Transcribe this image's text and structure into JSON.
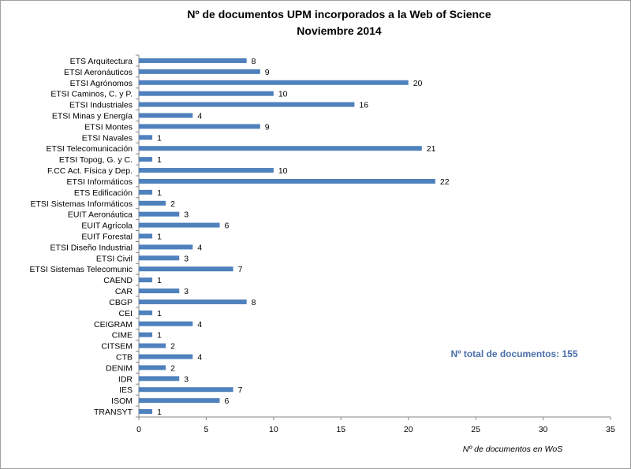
{
  "chart_data": {
    "type": "bar",
    "orientation": "horizontal",
    "title": [
      "Nº de documentos UPM incorporados a la Web of Science",
      "Noviembre 2014"
    ],
    "xlabel": "Nº de documentos en WoS",
    "ylabel": "",
    "xlim": [
      0,
      35
    ],
    "xticks": [
      0,
      5,
      10,
      15,
      20,
      25,
      30,
      35
    ],
    "grid": false,
    "categories": [
      "ETS Arquitectura",
      "ETSI Aeronáuticos",
      "ETSI Agrónomos",
      "ETSI Caminos, C. y P.",
      "ETSI Industriales",
      "ETSI Minas y Energía",
      "ETSI Montes",
      "ETSI Navales",
      "ETSI Telecomunicación",
      "ETSI Topog, G. y C.",
      "F.CC Act. Física y Dep.",
      "ETSI Informáticos",
      "ETS Edificación",
      "ETSI Sistemas Informáticos",
      "EUIT Aeronáutica",
      "EUIT Agrícola",
      "EUIT Forestal",
      "ETSI Diseño Industrial",
      "ETSI Civil",
      "ETSI Sistemas Telecomunic",
      "CAEND",
      "CAR",
      "CBGP",
      "CEI",
      "CEIGRAM",
      "CIME",
      "CITSEM",
      "CTB",
      "DENIM",
      "IDR",
      "IES",
      "ISOM",
      "TRANSYT"
    ],
    "values": [
      8,
      9,
      20,
      10,
      16,
      4,
      9,
      1,
      21,
      1,
      10,
      22,
      1,
      2,
      3,
      6,
      1,
      4,
      3,
      7,
      1,
      3,
      8,
      1,
      4,
      1,
      2,
      4,
      2,
      3,
      7,
      6,
      1
    ],
    "annotation": "Nº total de documentos:  155",
    "bar_color": "#4f81bd",
    "annotation_color": "#4a6fa8"
  }
}
